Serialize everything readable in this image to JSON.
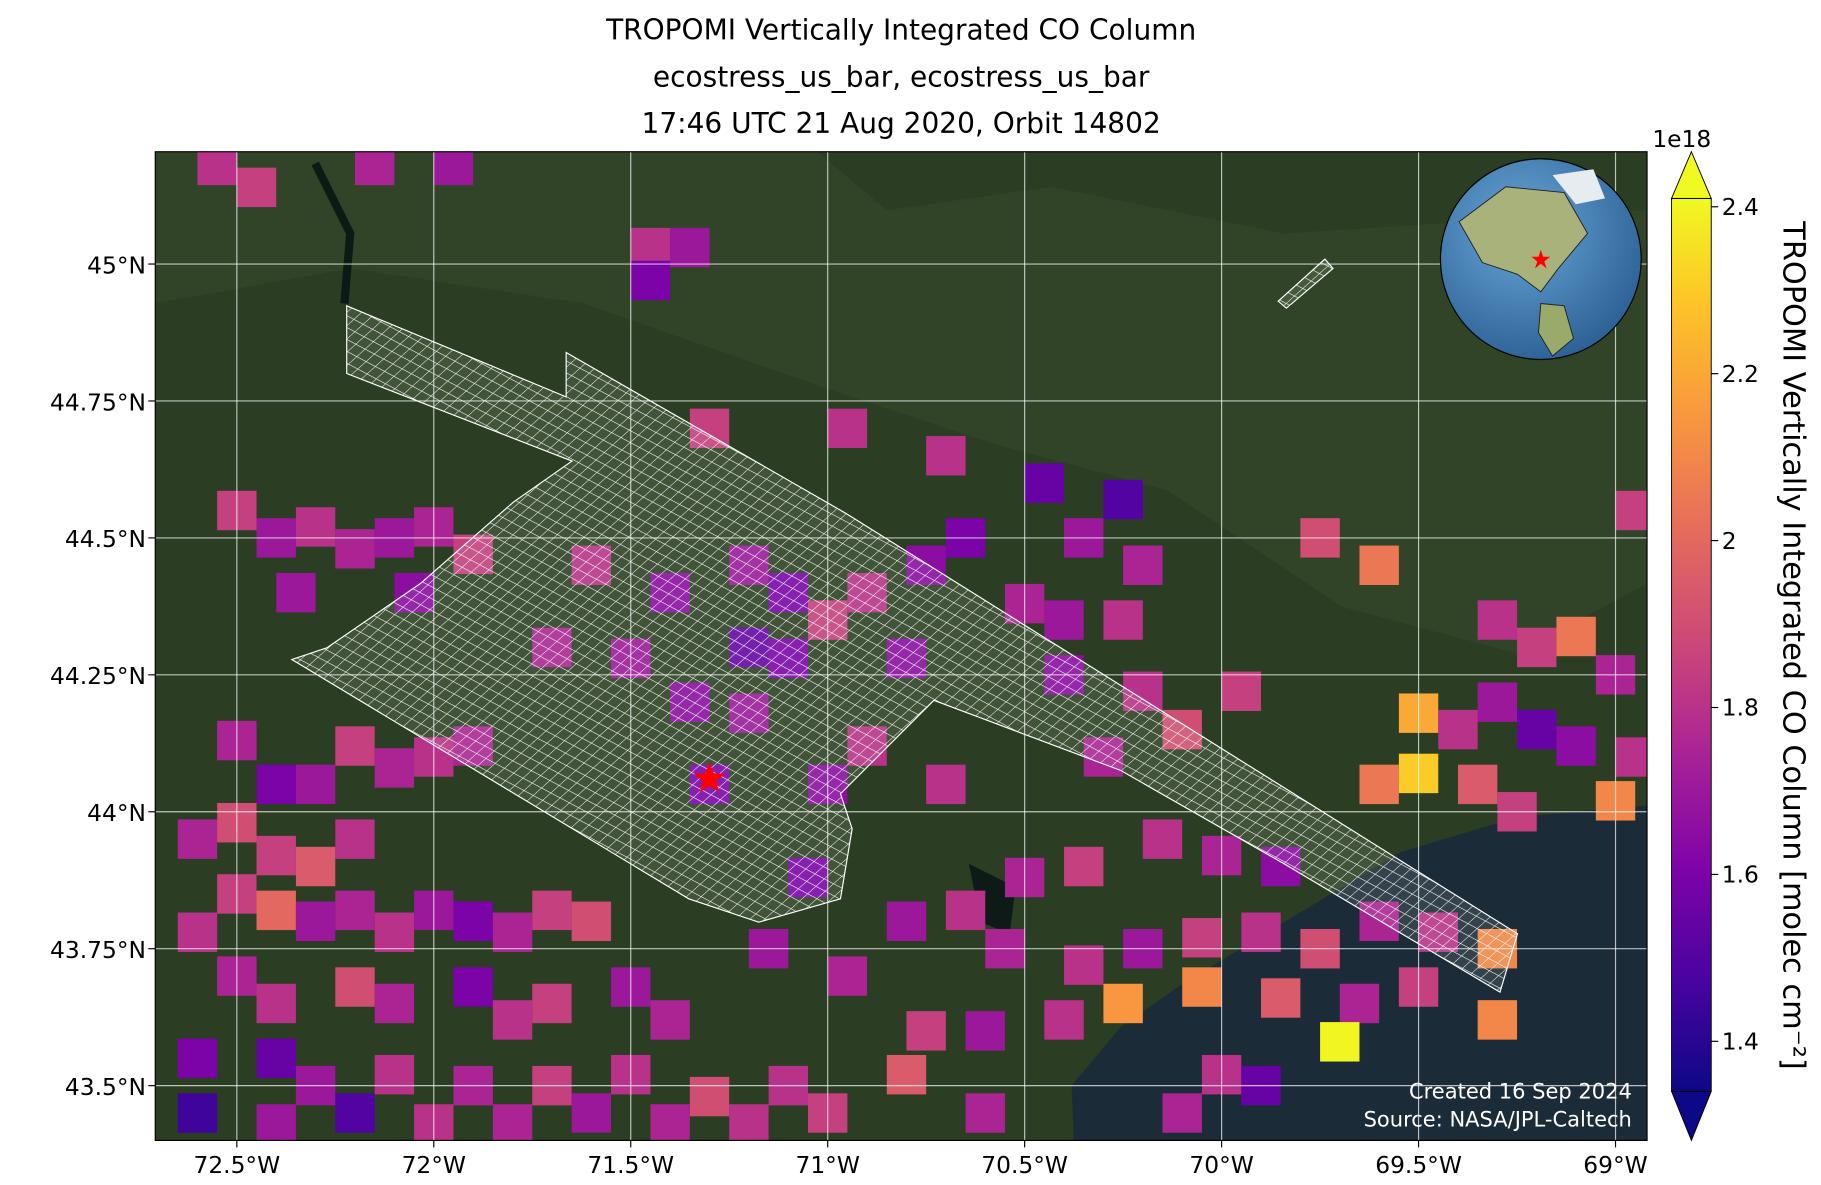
{
  "title": [
    "TROPOMI Vertically Integrated CO Column",
    "ecostress_us_bar, ecostress_us_bar",
    "17:46 UTC 21 Aug 2020, Orbit 14802"
  ],
  "map": {
    "xlim": [
      -72.707,
      -68.92
    ],
    "ylim": [
      43.4,
      45.205
    ],
    "xticks": [
      {
        "value": -72.5,
        "label": "72.5°W"
      },
      {
        "value": -72,
        "label": "72°W"
      },
      {
        "value": -71.5,
        "label": "71.5°W"
      },
      {
        "value": -71,
        "label": "71°W"
      },
      {
        "value": -70.5,
        "label": "70.5°W"
      },
      {
        "value": -70,
        "label": "70°W"
      },
      {
        "value": -69.5,
        "label": "69.5°W"
      },
      {
        "value": -69,
        "label": "69°W"
      }
    ],
    "yticks": [
      {
        "value": 45,
        "label": "45°N"
      },
      {
        "value": 44.75,
        "label": "44.75°N"
      },
      {
        "value": 44.5,
        "label": "44.5°N"
      },
      {
        "value": 44.25,
        "label": "44.25°N"
      },
      {
        "value": 44,
        "label": "44°N"
      },
      {
        "value": 43.75,
        "label": "43.75°N"
      },
      {
        "value": 43.5,
        "label": "43.5°N"
      }
    ],
    "grid": true,
    "site": [
      -71.3,
      44.06
    ],
    "cells": [
      [
        -72.55,
        45.18,
        1.8
      ],
      [
        -72.45,
        45.14,
        1.85
      ],
      [
        -72.15,
        45.18,
        1.75
      ],
      [
        -71.95,
        45.18,
        1.7
      ],
      [
        -71.45,
        45.03,
        1.8
      ],
      [
        -71.35,
        45.03,
        1.7
      ],
      [
        -71.45,
        44.97,
        1.6
      ],
      [
        -72.5,
        44.55,
        1.85
      ],
      [
        -72.4,
        44.5,
        1.7
      ],
      [
        -72.3,
        44.52,
        1.8
      ],
      [
        -72.2,
        44.48,
        1.75
      ],
      [
        -72.1,
        44.5,
        1.7
      ],
      [
        -72.0,
        44.52,
        1.75
      ],
      [
        -71.9,
        44.47,
        1.85
      ],
      [
        -72.35,
        44.4,
        1.7
      ],
      [
        -72.05,
        44.4,
        1.65
      ],
      [
        -72.5,
        44.13,
        1.75
      ],
      [
        -72.4,
        44.05,
        1.6
      ],
      [
        -72.2,
        44.12,
        1.85
      ],
      [
        -72.1,
        44.08,
        1.75
      ],
      [
        -72.0,
        44.1,
        1.8
      ],
      [
        -71.9,
        44.12,
        1.75
      ],
      [
        -72.3,
        44.05,
        1.7
      ],
      [
        -72.6,
        43.95,
        1.75
      ],
      [
        -72.5,
        43.98,
        1.9
      ],
      [
        -72.4,
        43.92,
        1.85
      ],
      [
        -72.3,
        43.9,
        1.95
      ],
      [
        -72.2,
        43.95,
        1.8
      ],
      [
        -72.5,
        43.85,
        1.85
      ],
      [
        -72.4,
        43.82,
        2.0
      ],
      [
        -72.6,
        43.78,
        1.8
      ],
      [
        -72.3,
        43.8,
        1.7
      ],
      [
        -72.2,
        43.82,
        1.75
      ],
      [
        -72.1,
        43.78,
        1.8
      ],
      [
        -72.0,
        43.82,
        1.7
      ],
      [
        -71.9,
        43.8,
        1.6
      ],
      [
        -71.8,
        43.78,
        1.75
      ],
      [
        -71.7,
        43.82,
        1.85
      ],
      [
        -71.6,
        43.8,
        1.9
      ],
      [
        -72.5,
        43.7,
        1.75
      ],
      [
        -72.4,
        43.65,
        1.8
      ],
      [
        -72.2,
        43.68,
        1.9
      ],
      [
        -72.1,
        43.65,
        1.75
      ],
      [
        -71.9,
        43.68,
        1.6
      ],
      [
        -71.8,
        43.62,
        1.8
      ],
      [
        -71.7,
        43.65,
        1.85
      ],
      [
        -71.5,
        43.68,
        1.7
      ],
      [
        -71.4,
        43.62,
        1.75
      ],
      [
        -72.6,
        43.55,
        1.6
      ],
      [
        -72.4,
        43.55,
        1.55
      ],
      [
        -72.3,
        43.5,
        1.7
      ],
      [
        -72.1,
        43.52,
        1.8
      ],
      [
        -71.9,
        43.5,
        1.75
      ],
      [
        -71.7,
        43.5,
        1.85
      ],
      [
        -71.5,
        43.52,
        1.8
      ],
      [
        -71.3,
        43.48,
        1.9
      ],
      [
        -71.1,
        43.5,
        1.8
      ],
      [
        -72.6,
        43.45,
        1.45
      ],
      [
        -72.4,
        43.43,
        1.7
      ],
      [
        -72.2,
        43.45,
        1.5
      ],
      [
        -72.0,
        43.43,
        1.8
      ],
      [
        -71.8,
        43.43,
        1.75
      ],
      [
        -71.6,
        43.45,
        1.7
      ],
      [
        -71.4,
        43.43,
        1.75
      ],
      [
        -71.2,
        43.43,
        1.8
      ],
      [
        -71.0,
        43.45,
        1.85
      ],
      [
        -70.8,
        43.52,
        1.95
      ],
      [
        -70.6,
        43.45,
        1.75
      ],
      [
        -71.3,
        44.7,
        1.85
      ],
      [
        -70.95,
        44.7,
        1.8
      ],
      [
        -70.7,
        44.65,
        1.8
      ],
      [
        -70.45,
        44.6,
        1.55
      ],
      [
        -70.25,
        44.57,
        1.5
      ],
      [
        -70.35,
        44.5,
        1.7
      ],
      [
        -70.2,
        44.45,
        1.75
      ],
      [
        -70.65,
        44.5,
        1.6
      ],
      [
        -70.75,
        44.45,
        1.65
      ],
      [
        -71.6,
        44.45,
        1.8
      ],
      [
        -71.4,
        44.4,
        1.65
      ],
      [
        -71.2,
        44.45,
        1.7
      ],
      [
        -71.1,
        44.4,
        1.6
      ],
      [
        -71.0,
        44.35,
        1.85
      ],
      [
        -70.9,
        44.4,
        1.8
      ],
      [
        -70.5,
        44.38,
        1.75
      ],
      [
        -70.4,
        44.35,
        1.7
      ],
      [
        -70.25,
        44.35,
        1.8
      ],
      [
        -71.7,
        44.3,
        1.75
      ],
      [
        -71.5,
        44.28,
        1.7
      ],
      [
        -71.2,
        44.3,
        1.55
      ],
      [
        -71.1,
        44.28,
        1.6
      ],
      [
        -70.8,
        44.28,
        1.65
      ],
      [
        -70.4,
        44.25,
        1.65
      ],
      [
        -70.2,
        44.22,
        1.8
      ],
      [
        -71.35,
        44.2,
        1.65
      ],
      [
        -71.2,
        44.18,
        1.7
      ],
      [
        -70.9,
        44.12,
        1.8
      ],
      [
        -71.0,
        44.05,
        1.65
      ],
      [
        -71.3,
        44.05,
        1.6
      ],
      [
        -70.7,
        44.05,
        1.8
      ],
      [
        -70.3,
        44.1,
        1.75
      ],
      [
        -70.1,
        44.15,
        1.9
      ],
      [
        -69.95,
        44.22,
        1.85
      ],
      [
        -69.75,
        44.5,
        1.9
      ],
      [
        -69.6,
        44.45,
        2.05
      ],
      [
        -68.95,
        44.55,
        1.85
      ],
      [
        -69.3,
        44.35,
        1.8
      ],
      [
        -69.2,
        44.3,
        1.85
      ],
      [
        -69.1,
        44.32,
        2.05
      ],
      [
        -69.0,
        44.25,
        1.75
      ],
      [
        -69.3,
        44.2,
        1.7
      ],
      [
        -69.5,
        44.18,
        2.2
      ],
      [
        -69.4,
        44.15,
        1.8
      ],
      [
        -69.2,
        44.15,
        1.55
      ],
      [
        -69.1,
        44.12,
        1.65
      ],
      [
        -68.95,
        44.1,
        1.8
      ],
      [
        -69.6,
        44.05,
        2.05
      ],
      [
        -69.5,
        44.07,
        2.3
      ],
      [
        -69.35,
        44.05,
        1.95
      ],
      [
        -69.25,
        44.0,
        1.85
      ],
      [
        -69.0,
        44.02,
        2.1
      ],
      [
        -70.15,
        43.95,
        1.8
      ],
      [
        -70.0,
        43.92,
        1.75
      ],
      [
        -69.85,
        43.9,
        1.65
      ],
      [
        -70.35,
        43.9,
        1.85
      ],
      [
        -70.5,
        43.88,
        1.75
      ],
      [
        -70.65,
        43.82,
        1.8
      ],
      [
        -70.8,
        43.8,
        1.7
      ],
      [
        -70.55,
        43.75,
        1.75
      ],
      [
        -70.35,
        43.72,
        1.8
      ],
      [
        -70.2,
        43.75,
        1.7
      ],
      [
        -70.05,
        43.77,
        1.85
      ],
      [
        -69.9,
        43.78,
        1.8
      ],
      [
        -69.75,
        43.75,
        1.9
      ],
      [
        -69.6,
        43.8,
        1.75
      ],
      [
        -69.45,
        43.78,
        1.8
      ],
      [
        -69.3,
        43.75,
        2.1
      ],
      [
        -69.5,
        43.68,
        1.85
      ],
      [
        -69.65,
        43.65,
        1.75
      ],
      [
        -69.85,
        43.66,
        1.95
      ],
      [
        -70.05,
        43.68,
        2.1
      ],
      [
        -70.25,
        43.65,
        2.15
      ],
      [
        -70.4,
        43.62,
        1.8
      ],
      [
        -70.6,
        43.6,
        1.7
      ],
      [
        -70.75,
        43.6,
        1.85
      ],
      [
        -69.7,
        43.58,
        2.4
      ],
      [
        -69.3,
        43.62,
        2.1
      ],
      [
        -70.0,
        43.52,
        1.8
      ],
      [
        -69.9,
        43.5,
        1.55
      ],
      [
        -70.1,
        43.45,
        1.75
      ],
      [
        -71.05,
        43.88,
        1.6
      ],
      [
        -71.15,
        43.75,
        1.7
      ],
      [
        -70.95,
        43.7,
        1.75
      ]
    ]
  },
  "colorbar": {
    "colormap": "plasma",
    "lim": [
      1.34,
      2.41
    ],
    "ticks": [
      1.4,
      1.6,
      1.8,
      2.0,
      2.2,
      2.4
    ],
    "offset_label": "1e18",
    "label": "TROPOMI Vertically Integrated CO Column [molec cm⁻²]"
  },
  "credits": [
    "Created 16 Sep 2024",
    "Source: NASA/JPL-Caltech"
  ]
}
